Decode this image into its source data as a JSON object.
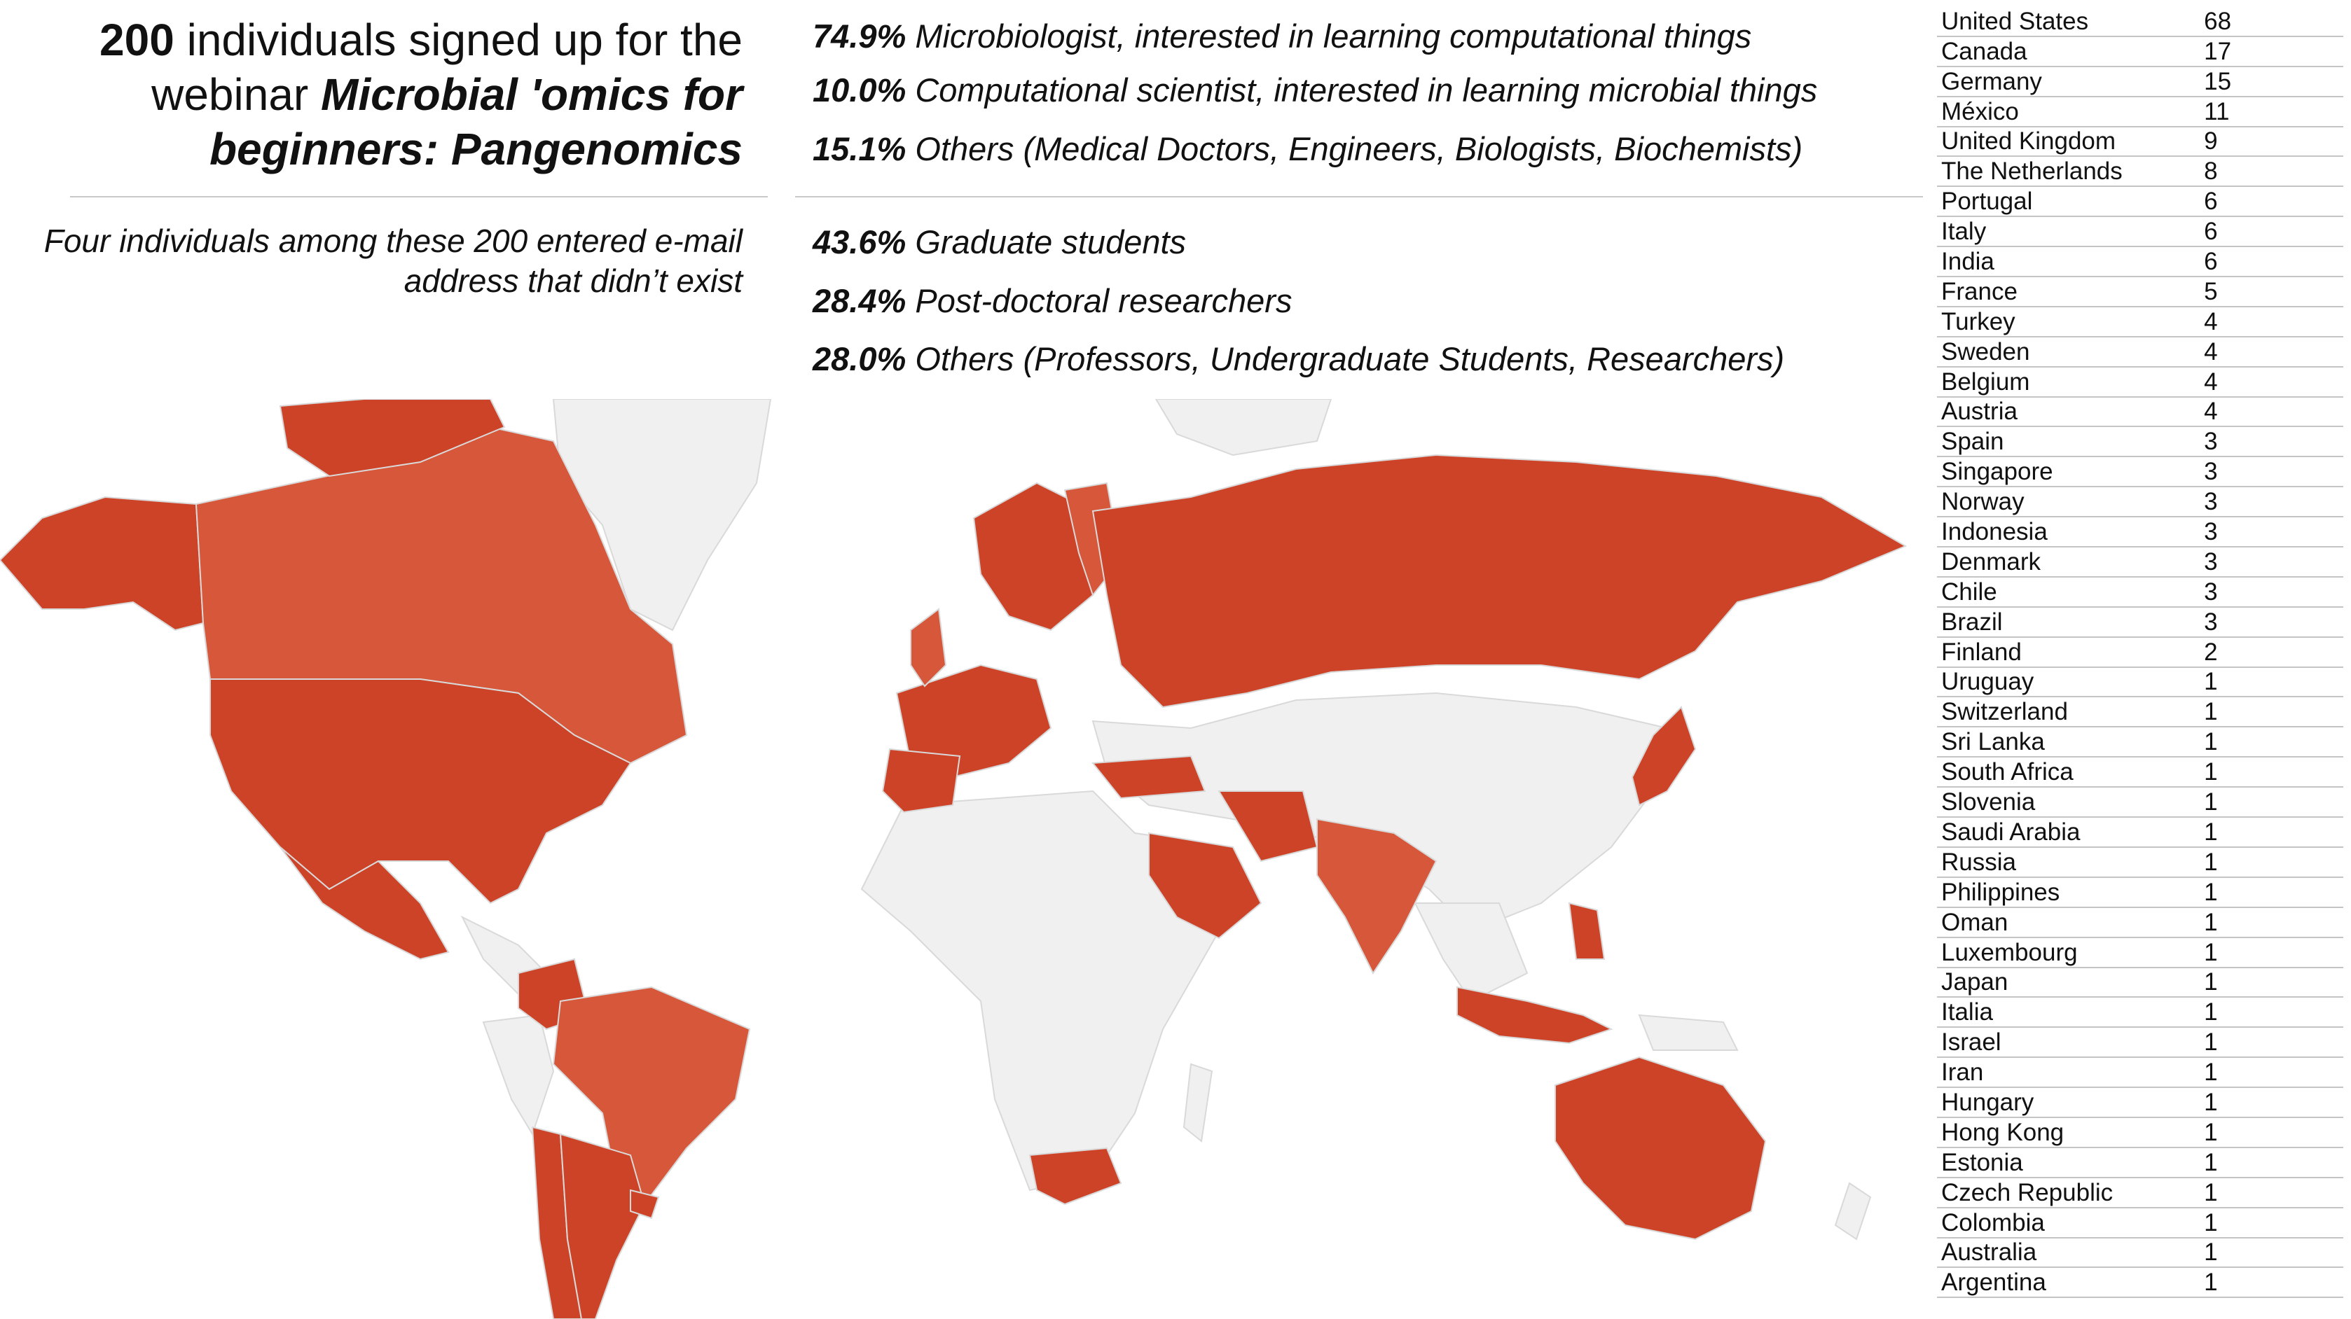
{
  "headline": {
    "count": "200",
    "lead": " individuals signed up for the webinar ",
    "webinar_title": "Microbial 'omics for beginners: Pangenomics"
  },
  "note": "Four individuals among these 200 entered e-mail address that didn’t exist",
  "occupation_stats": [
    {
      "pct": "74.9%",
      "label": "Microbiologist, interested in learning computational things"
    },
    {
      "pct": "10.0%",
      "label": "Computational scientist, interested in learning microbial things"
    },
    {
      "pct": "15.1%",
      "label": "Others (Medical Doctors, Engineers, Biologists, Biochemists)"
    }
  ],
  "career_stats": [
    {
      "pct": "43.6%",
      "label": "Graduate students"
    },
    {
      "pct": "28.4%",
      "label": "Post-doctoral researchers"
    },
    {
      "pct": "28.0%",
      "label": "Others (Professors, Undergraduate Students, Researchers)"
    }
  ],
  "countries": [
    {
      "name": "United States",
      "count": "68"
    },
    {
      "name": "Canada",
      "count": "17"
    },
    {
      "name": "Germany",
      "count": "15"
    },
    {
      "name": "México",
      "count": "11"
    },
    {
      "name": "United Kingdom",
      "count": "9"
    },
    {
      "name": "The Netherlands",
      "count": "8"
    },
    {
      "name": "Portugal",
      "count": "6"
    },
    {
      "name": "Italy",
      "count": "6"
    },
    {
      "name": "India",
      "count": "6"
    },
    {
      "name": "France",
      "count": "5"
    },
    {
      "name": "Turkey",
      "count": "4"
    },
    {
      "name": "Sweden",
      "count": "4"
    },
    {
      "name": "Belgium",
      "count": "4"
    },
    {
      "name": "Austria",
      "count": "4"
    },
    {
      "name": "Spain",
      "count": "3"
    },
    {
      "name": "Singapore",
      "count": "3"
    },
    {
      "name": "Norway",
      "count": "3"
    },
    {
      "name": "Indonesia",
      "count": "3"
    },
    {
      "name": "Denmark",
      "count": "3"
    },
    {
      "name": "Chile",
      "count": "3"
    },
    {
      "name": "Brazil",
      "count": "3"
    },
    {
      "name": "Finland",
      "count": "2"
    },
    {
      "name": "Uruguay",
      "count": "1"
    },
    {
      "name": "Switzerland",
      "count": "1"
    },
    {
      "name": "Sri Lanka",
      "count": "1"
    },
    {
      "name": "South Africa",
      "count": "1"
    },
    {
      "name": "Slovenia",
      "count": "1"
    },
    {
      "name": "Saudi Arabia",
      "count": "1"
    },
    {
      "name": "Russia",
      "count": "1"
    },
    {
      "name": "Philippines",
      "count": "1"
    },
    {
      "name": "Oman",
      "count": "1"
    },
    {
      "name": "Luxembourg",
      "count": "1"
    },
    {
      "name": "Japan",
      "count": "1"
    },
    {
      "name": "Italia",
      "count": "1"
    },
    {
      "name": "Israel",
      "count": "1"
    },
    {
      "name": "Iran",
      "count": "1"
    },
    {
      "name": "Hungary",
      "count": "1"
    },
    {
      "name": "Hong Kong",
      "count": "1"
    },
    {
      "name": "Estonia",
      "count": "1"
    },
    {
      "name": "Czech Republic",
      "count": "1"
    },
    {
      "name": "Colombia",
      "count": "1"
    },
    {
      "name": "Australia",
      "count": "1"
    },
    {
      "name": "Argentina",
      "count": "1"
    }
  ],
  "map": {
    "highlight_color": "#cd4328",
    "highlight_alt_color": "#d6573a",
    "base_color": "#f0f0f0",
    "border_color": "#d9d9d9"
  }
}
